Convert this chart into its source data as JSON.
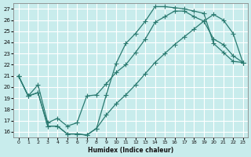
{
  "xlabel": "Humidex (Indice chaleur)",
  "bg_color": "#c8ecec",
  "grid_color": "#ffffff",
  "line_color": "#2a7a70",
  "xlim": [
    -0.5,
    23.5
  ],
  "ylim": [
    15.5,
    27.5
  ],
  "xticks": [
    0,
    1,
    2,
    3,
    4,
    5,
    6,
    7,
    8,
    9,
    10,
    11,
    12,
    13,
    14,
    15,
    16,
    17,
    18,
    19,
    20,
    21,
    22,
    23
  ],
  "yticks": [
    16,
    17,
    18,
    19,
    20,
    21,
    22,
    23,
    24,
    25,
    26,
    27
  ],
  "line1_x": [
    0,
    1,
    2,
    3,
    4,
    5,
    6,
    7,
    8,
    9,
    10,
    11,
    12,
    13,
    14,
    15,
    16,
    17,
    18,
    19,
    20,
    21,
    22,
    23
  ],
  "line1_y": [
    21.0,
    19.2,
    19.5,
    16.5,
    16.5,
    15.8,
    15.8,
    15.7,
    16.3,
    19.3,
    22.1,
    23.9,
    24.8,
    25.9,
    27.2,
    27.2,
    27.1,
    27.0,
    26.8,
    26.6,
    23.9,
    23.1,
    22.3,
    22.2
  ],
  "line2_x": [
    0,
    1,
    2,
    3,
    4,
    5,
    6,
    7,
    8,
    9,
    10,
    11,
    12,
    13,
    14,
    15,
    16,
    17,
    18,
    19,
    20,
    21,
    22,
    23
  ],
  "line2_y": [
    21.0,
    19.2,
    20.2,
    16.8,
    17.2,
    16.5,
    16.8,
    19.2,
    19.3,
    20.3,
    21.3,
    22.0,
    23.1,
    24.3,
    25.8,
    26.3,
    26.8,
    26.8,
    26.3,
    25.9,
    24.3,
    23.8,
    22.8,
    22.2
  ],
  "line3_x": [
    0,
    1,
    2,
    3,
    4,
    5,
    6,
    7,
    8,
    9,
    10,
    11,
    12,
    13,
    14,
    15,
    16,
    17,
    18,
    19,
    20,
    21,
    22,
    23
  ],
  "line3_y": [
    21.0,
    19.2,
    19.5,
    16.5,
    16.5,
    15.8,
    15.8,
    15.7,
    16.3,
    17.5,
    18.5,
    19.3,
    20.2,
    21.2,
    22.2,
    23.0,
    23.8,
    24.5,
    25.2,
    25.9,
    26.5,
    26.0,
    24.8,
    22.2
  ]
}
